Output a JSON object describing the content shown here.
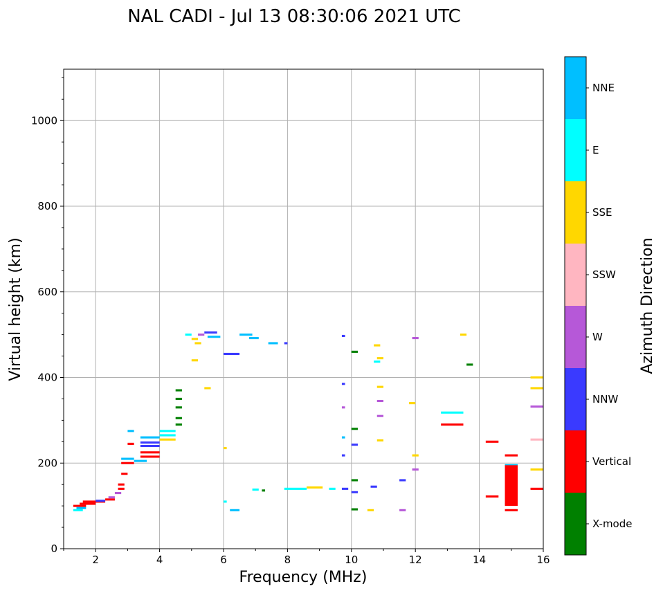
{
  "chart_data": {
    "type": "scatter",
    "title": "NAL CADI - Jul 13 08:30:06 2021 UTC",
    "xlabel": "Frequency (MHz)",
    "ylabel": "Virtual height (km)",
    "xlim": [
      1,
      16
    ],
    "ylim": [
      0,
      1120
    ],
    "xticks": [
      2,
      4,
      6,
      8,
      10,
      12,
      14,
      16
    ],
    "yticks": [
      0,
      200,
      400,
      600,
      800,
      1000
    ],
    "grid": true,
    "colorbar": {
      "label": "Azimuth Direction",
      "categories": [
        "X-mode",
        "Vertical",
        "NNW",
        "W",
        "SSW",
        "SSE",
        "E",
        "NNE"
      ],
      "colors": [
        "#008000",
        "#ff0000",
        "#3a3aff",
        "#b658d8",
        "#ffb6c1",
        "#ffd700",
        "#00ffff",
        "#00bfff"
      ]
    },
    "echoes": [
      {
        "f0": 1.3,
        "f1": 1.7,
        "h": 100,
        "c": "Vertical"
      },
      {
        "f0": 1.3,
        "f1": 1.6,
        "h": 90,
        "c": "E"
      },
      {
        "f0": 1.4,
        "f1": 1.7,
        "h": 95,
        "c": "NNE"
      },
      {
        "f0": 1.5,
        "f1": 2.0,
        "h": 105,
        "c": "Vertical"
      },
      {
        "f0": 1.6,
        "f1": 2.3,
        "h": 110,
        "c": "Vertical"
      },
      {
        "f0": 2.0,
        "f1": 2.3,
        "h": 112,
        "c": "NNW"
      },
      {
        "f0": 2.3,
        "f1": 2.6,
        "h": 115,
        "c": "Vertical"
      },
      {
        "f0": 2.4,
        "f1": 2.6,
        "h": 120,
        "c": "W"
      },
      {
        "f0": 2.6,
        "f1": 2.8,
        "h": 130,
        "c": "W"
      },
      {
        "f0": 2.7,
        "f1": 2.9,
        "h": 140,
        "c": "Vertical"
      },
      {
        "f0": 2.7,
        "f1": 2.9,
        "h": 150,
        "c": "Vertical"
      },
      {
        "f0": 2.8,
        "f1": 3.0,
        "h": 175,
        "c": "Vertical"
      },
      {
        "f0": 2.8,
        "f1": 3.2,
        "h": 200,
        "c": "Vertical"
      },
      {
        "f0": 2.8,
        "f1": 3.2,
        "h": 210,
        "c": "NNE"
      },
      {
        "f0": 3.0,
        "f1": 3.2,
        "h": 245,
        "c": "Vertical"
      },
      {
        "f0": 3.0,
        "f1": 3.2,
        "h": 275,
        "c": "NNE"
      },
      {
        "f0": 3.2,
        "f1": 3.6,
        "h": 205,
        "c": "NNE"
      },
      {
        "f0": 3.4,
        "f1": 4.0,
        "h": 215,
        "c": "Vertical"
      },
      {
        "f0": 3.4,
        "f1": 4.0,
        "h": 225,
        "c": "Vertical"
      },
      {
        "f0": 3.4,
        "f1": 4.0,
        "h": 240,
        "c": "NNW"
      },
      {
        "f0": 3.4,
        "f1": 4.0,
        "h": 248,
        "c": "NNW"
      },
      {
        "f0": 3.4,
        "f1": 4.0,
        "h": 260,
        "c": "NNE"
      },
      {
        "f0": 4.0,
        "f1": 4.5,
        "h": 255,
        "c": "SSE"
      },
      {
        "f0": 4.0,
        "f1": 4.5,
        "h": 265,
        "c": "E"
      },
      {
        "f0": 4.0,
        "f1": 4.5,
        "h": 275,
        "c": "E"
      },
      {
        "f0": 4.5,
        "f1": 4.7,
        "h": 290,
        "c": "X-mode"
      },
      {
        "f0": 4.5,
        "f1": 4.7,
        "h": 305,
        "c": "X-mode"
      },
      {
        "f0": 4.5,
        "f1": 4.7,
        "h": 330,
        "c": "X-mode"
      },
      {
        "f0": 4.5,
        "f1": 4.7,
        "h": 350,
        "c": "X-mode"
      },
      {
        "f0": 4.5,
        "f1": 4.7,
        "h": 370,
        "c": "X-mode"
      },
      {
        "f0": 4.8,
        "f1": 5.0,
        "h": 500,
        "c": "E"
      },
      {
        "f0": 5.0,
        "f1": 5.2,
        "h": 490,
        "c": "SSE"
      },
      {
        "f0": 5.1,
        "f1": 5.3,
        "h": 480,
        "c": "SSE"
      },
      {
        "f0": 5.2,
        "f1": 5.4,
        "h": 500,
        "c": "W"
      },
      {
        "f0": 5.4,
        "f1": 5.8,
        "h": 505,
        "c": "NNW"
      },
      {
        "f0": 5.5,
        "f1": 5.9,
        "h": 495,
        "c": "NNE"
      },
      {
        "f0": 6.0,
        "f1": 6.5,
        "h": 455,
        "c": "NNW"
      },
      {
        "f0": 6.5,
        "f1": 6.9,
        "h": 500,
        "c": "NNE"
      },
      {
        "f0": 6.8,
        "f1": 7.1,
        "h": 492,
        "c": "NNE"
      },
      {
        "f0": 7.4,
        "f1": 7.7,
        "h": 480,
        "c": "NNE"
      },
      {
        "f0": 7.9,
        "f1": 8.0,
        "h": 480,
        "c": "NNW"
      },
      {
        "f0": 5.0,
        "f1": 5.2,
        "h": 440,
        "c": "SSE"
      },
      {
        "f0": 5.4,
        "f1": 5.6,
        "h": 375,
        "c": "SSE"
      },
      {
        "f0": 6.0,
        "f1": 6.1,
        "h": 235,
        "c": "SSE"
      },
      {
        "f0": 6.0,
        "f1": 6.1,
        "h": 110,
        "c": "E"
      },
      {
        "f0": 6.2,
        "f1": 6.5,
        "h": 90,
        "c": "NNE"
      },
      {
        "f0": 6.9,
        "f1": 7.1,
        "h": 138,
        "c": "E"
      },
      {
        "f0": 7.2,
        "f1": 7.3,
        "h": 136,
        "c": "X-mode"
      },
      {
        "f0": 7.9,
        "f1": 8.6,
        "h": 140,
        "c": "E"
      },
      {
        "f0": 8.6,
        "f1": 9.1,
        "h": 143,
        "c": "SSE"
      },
      {
        "f0": 9.3,
        "f1": 9.5,
        "h": 140,
        "c": "E"
      },
      {
        "f0": 9.7,
        "f1": 9.9,
        "h": 140,
        "c": "NNW"
      },
      {
        "f0": 9.7,
        "f1": 9.8,
        "h": 385,
        "c": "NNW"
      },
      {
        "f0": 9.7,
        "f1": 9.8,
        "h": 330,
        "c": "W"
      },
      {
        "f0": 9.7,
        "f1": 9.8,
        "h": 260,
        "c": "NNE"
      },
      {
        "f0": 9.7,
        "f1": 9.8,
        "h": 218,
        "c": "NNW"
      },
      {
        "f0": 9.7,
        "f1": 9.8,
        "h": 497,
        "c": "NNW"
      },
      {
        "f0": 10.0,
        "f1": 10.2,
        "h": 460,
        "c": "X-mode"
      },
      {
        "f0": 10.0,
        "f1": 10.2,
        "h": 280,
        "c": "X-mode"
      },
      {
        "f0": 10.0,
        "f1": 10.2,
        "h": 243,
        "c": "NNW"
      },
      {
        "f0": 10.0,
        "f1": 10.2,
        "h": 160,
        "c": "X-mode"
      },
      {
        "f0": 10.0,
        "f1": 10.2,
        "h": 132,
        "c": "NNW"
      },
      {
        "f0": 10.0,
        "f1": 10.2,
        "h": 92,
        "c": "X-mode"
      },
      {
        "f0": 10.5,
        "f1": 10.7,
        "h": 90,
        "c": "SSE"
      },
      {
        "f0": 10.6,
        "f1": 10.8,
        "h": 145,
        "c": "NNW"
      },
      {
        "f0": 10.7,
        "f1": 10.9,
        "h": 437,
        "c": "E"
      },
      {
        "f0": 10.7,
        "f1": 10.9,
        "h": 475,
        "c": "SSE"
      },
      {
        "f0": 10.8,
        "f1": 11.0,
        "h": 445,
        "c": "SSE"
      },
      {
        "f0": 10.8,
        "f1": 11.0,
        "h": 378,
        "c": "SSE"
      },
      {
        "f0": 10.8,
        "f1": 11.0,
        "h": 345,
        "c": "W"
      },
      {
        "f0": 10.8,
        "f1": 11.0,
        "h": 310,
        "c": "W"
      },
      {
        "f0": 10.8,
        "f1": 11.0,
        "h": 253,
        "c": "SSE"
      },
      {
        "f0": 11.5,
        "f1": 11.7,
        "h": 160,
        "c": "NNW"
      },
      {
        "f0": 11.5,
        "f1": 11.7,
        "h": 90,
        "c": "W"
      },
      {
        "f0": 11.8,
        "f1": 12.0,
        "h": 340,
        "c": "SSE"
      },
      {
        "f0": 11.9,
        "f1": 12.1,
        "h": 218,
        "c": "SSE"
      },
      {
        "f0": 11.9,
        "f1": 12.1,
        "h": 185,
        "c": "W"
      },
      {
        "f0": 11.9,
        "f1": 12.1,
        "h": 492,
        "c": "W"
      },
      {
        "f0": 12.8,
        "f1": 13.5,
        "h": 318,
        "c": "E"
      },
      {
        "f0": 12.8,
        "f1": 13.5,
        "h": 290,
        "c": "Vertical"
      },
      {
        "f0": 13.4,
        "f1": 13.6,
        "h": 500,
        "c": "SSE"
      },
      {
        "f0": 13.6,
        "f1": 13.8,
        "h": 430,
        "c": "X-mode"
      },
      {
        "f0": 14.2,
        "f1": 14.6,
        "h": 250,
        "c": "Vertical"
      },
      {
        "f0": 14.2,
        "f1": 14.6,
        "h": 122,
        "c": "Vertical"
      },
      {
        "f0": 14.8,
        "f1": 15.2,
        "h": 218,
        "c": "Vertical"
      },
      {
        "f0": 14.8,
        "f1": 15.2,
        "h": 195,
        "c": "NNE"
      },
      {
        "f0": 14.8,
        "f1": 15.2,
        "h": 90,
        "c": "Vertical"
      },
      {
        "f0": 14.8,
        "f1": 15.2,
        "h": 105,
        "c": "NNE"
      },
      {
        "f0": 15.6,
        "f1": 16.0,
        "h": 400,
        "c": "SSE"
      },
      {
        "f0": 15.6,
        "f1": 16.0,
        "h": 375,
        "c": "SSE"
      },
      {
        "f0": 15.6,
        "f1": 16.0,
        "h": 332,
        "c": "W"
      },
      {
        "f0": 15.6,
        "f1": 16.0,
        "h": 255,
        "c": "SSW"
      },
      {
        "f0": 15.6,
        "f1": 16.0,
        "h": 185,
        "c": "SSE"
      },
      {
        "f0": 15.6,
        "f1": 16.0,
        "h": 140,
        "c": "Vertical"
      }
    ],
    "blocks": [
      {
        "f0": 14.8,
        "f1": 15.2,
        "h0": 100,
        "h1": 195,
        "c": "Vertical"
      }
    ]
  }
}
